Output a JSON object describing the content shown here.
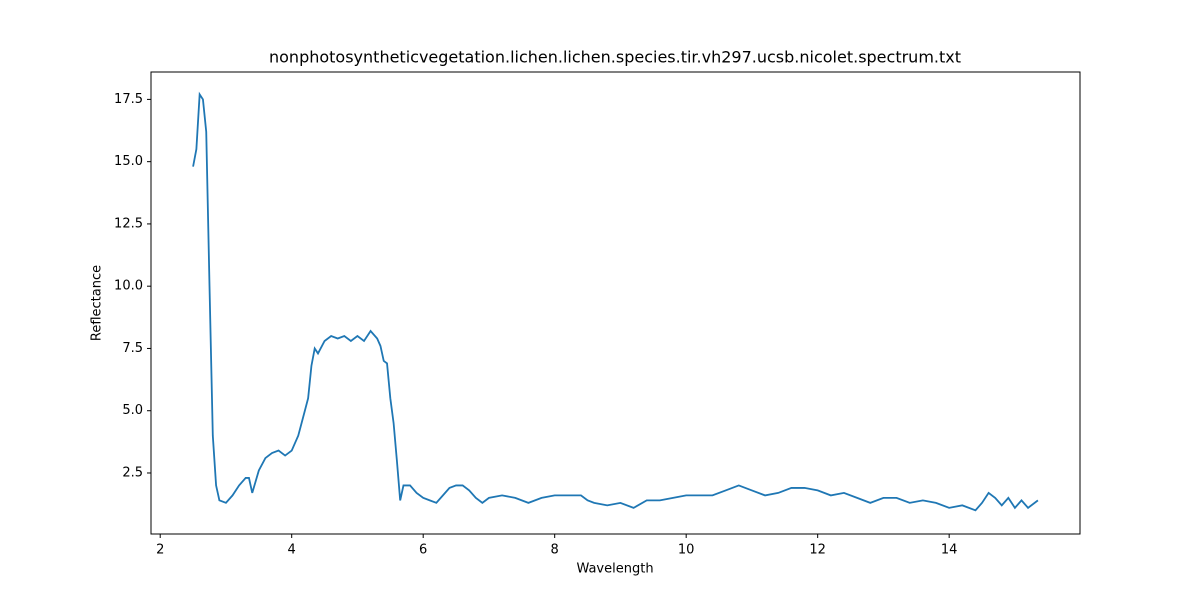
{
  "chart_data": {
    "type": "line",
    "title": "nonphotosyntheticvegetation.lichen.lichen.species.tir.vh297.ucsb.nicolet.spectrum.txt",
    "x_label": "Wavelength",
    "y_label": "Reflectance",
    "xlim": [
      1.86,
      15.99
    ],
    "ylim": [
      0.05,
      18.6
    ],
    "xticks": [
      2,
      4,
      6,
      8,
      10,
      12,
      14
    ],
    "yticks": [
      2.5,
      {
        "value": 5,
        "label": "5.0"
      },
      7.5,
      {
        "value": 10,
        "label": "10.0"
      },
      12.5,
      {
        "value": 15,
        "label": "15.0"
      },
      17.5
    ],
    "series": [
      {
        "color": "#1f77b4",
        "x": [
          2.5,
          2.55,
          2.6,
          2.65,
          2.7,
          2.75,
          2.8,
          2.85,
          2.9,
          3.0,
          3.1,
          3.2,
          3.3,
          3.35,
          3.4,
          3.5,
          3.6,
          3.7,
          3.8,
          3.9,
          4.0,
          4.1,
          4.2,
          4.25,
          4.3,
          4.35,
          4.4,
          4.5,
          4.6,
          4.7,
          4.8,
          4.9,
          5.0,
          5.1,
          5.2,
          5.3,
          5.35,
          5.4,
          5.45,
          5.5,
          5.55,
          5.6,
          5.65,
          5.7,
          5.8,
          5.9,
          6.0,
          6.1,
          6.2,
          6.3,
          6.4,
          6.5,
          6.6,
          6.7,
          6.8,
          6.9,
          7.0,
          7.2,
          7.4,
          7.6,
          7.8,
          8.0,
          8.2,
          8.4,
          8.5,
          8.6,
          8.8,
          9.0,
          9.2,
          9.4,
          9.6,
          9.8,
          10.0,
          10.2,
          10.4,
          10.6,
          10.8,
          11.0,
          11.2,
          11.4,
          11.6,
          11.8,
          12.0,
          12.2,
          12.4,
          12.6,
          12.8,
          13.0,
          13.2,
          13.4,
          13.6,
          13.8,
          14.0,
          14.2,
          14.4,
          14.5,
          14.6,
          14.7,
          14.8,
          14.9,
          15.0,
          15.1,
          15.2,
          15.35
        ],
        "values": [
          14.8,
          15.5,
          17.7,
          17.5,
          16.2,
          10,
          4,
          2,
          1.4,
          1.3,
          1.6,
          2.0,
          2.3,
          2.3,
          1.7,
          2.6,
          3.1,
          3.3,
          3.4,
          3.2,
          3.4,
          4.0,
          5.0,
          5.5,
          6.8,
          7.5,
          7.3,
          7.8,
          8.0,
          7.9,
          8.0,
          7.8,
          8.0,
          7.8,
          8.2,
          7.9,
          7.6,
          7.0,
          6.9,
          5.5,
          4.5,
          3.0,
          1.4,
          2.0,
          2.0,
          1.7,
          1.5,
          1.4,
          1.3,
          1.6,
          1.9,
          2.0,
          2.0,
          1.8,
          1.5,
          1.3,
          1.5,
          1.6,
          1.5,
          1.3,
          1.5,
          1.6,
          1.6,
          1.6,
          1.4,
          1.3,
          1.2,
          1.3,
          1.1,
          1.4,
          1.4,
          1.5,
          1.6,
          1.6,
          1.6,
          1.8,
          2.0,
          1.8,
          1.6,
          1.7,
          1.9,
          1.9,
          1.8,
          1.6,
          1.7,
          1.5,
          1.3,
          1.5,
          1.5,
          1.3,
          1.4,
          1.3,
          1.1,
          1.2,
          1.0,
          1.3,
          1.7,
          1.5,
          1.2,
          1.5,
          1.1,
          1.4,
          1.1,
          1.4
        ]
      }
    ]
  }
}
